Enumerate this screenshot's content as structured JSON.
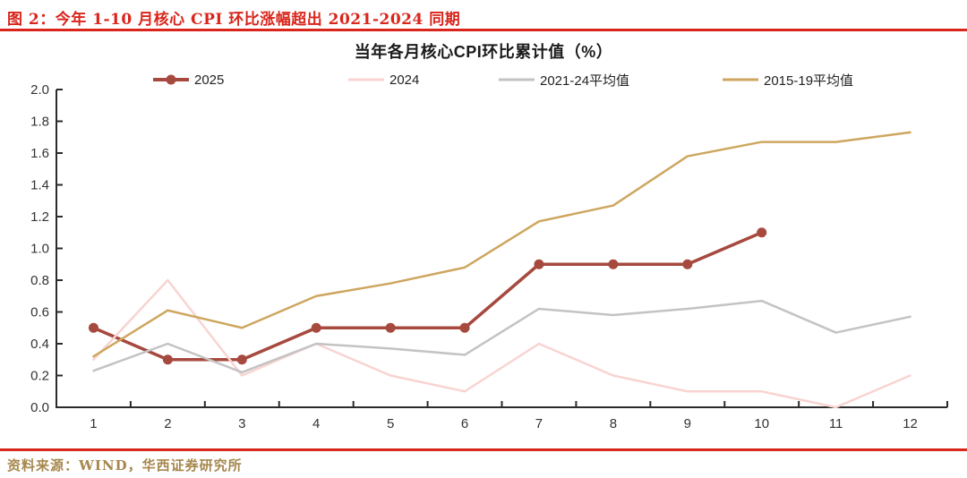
{
  "figure": {
    "title": "图 2：今年 1-10 月核心 CPI 环比涨幅超出 2021-2024 同期",
    "source": "资料来源：WIND，华西证券研究所",
    "accent_red": "#D9251B",
    "source_color": "#A6874D"
  },
  "chart_data": {
    "type": "line",
    "title": "当年各月核心CPI环比累计值（%）",
    "xlabel": "",
    "ylabel": "",
    "categories": [
      "1",
      "2",
      "3",
      "4",
      "5",
      "6",
      "7",
      "8",
      "9",
      "10",
      "11",
      "12"
    ],
    "y_ticks": [
      "0.0",
      "0.2",
      "0.4",
      "0.6",
      "0.8",
      "1.0",
      "1.2",
      "1.4",
      "1.6",
      "1.8",
      "2.0"
    ],
    "ylim": [
      0.0,
      2.0
    ],
    "grid": false,
    "legend_position": "top",
    "axis_color": "#2b2b2b",
    "tick_label_color": "#333333",
    "series": [
      {
        "name": "2025",
        "color": "#A6493E",
        "marker": true,
        "values": [
          0.5,
          0.3,
          0.3,
          0.5,
          0.5,
          0.5,
          0.9,
          0.9,
          0.9,
          1.1
        ]
      },
      {
        "name": "2024",
        "color": "#F8D4D1",
        "marker": false,
        "values": [
          0.3,
          0.8,
          0.2,
          0.4,
          0.2,
          0.1,
          0.4,
          0.2,
          0.1,
          0.1,
          0.0,
          0.2
        ]
      },
      {
        "name": "2021-24平均值",
        "color": "#C3C3C3",
        "marker": false,
        "values": [
          0.23,
          0.4,
          0.22,
          0.4,
          0.37,
          0.33,
          0.62,
          0.58,
          0.62,
          0.67,
          0.47,
          0.57
        ]
      },
      {
        "name": "2015-19平均值",
        "color": "#CEA65F",
        "marker": false,
        "values": [
          0.32,
          0.61,
          0.5,
          0.7,
          0.78,
          0.88,
          1.17,
          1.27,
          1.58,
          1.67,
          1.67,
          1.73
        ]
      }
    ]
  }
}
